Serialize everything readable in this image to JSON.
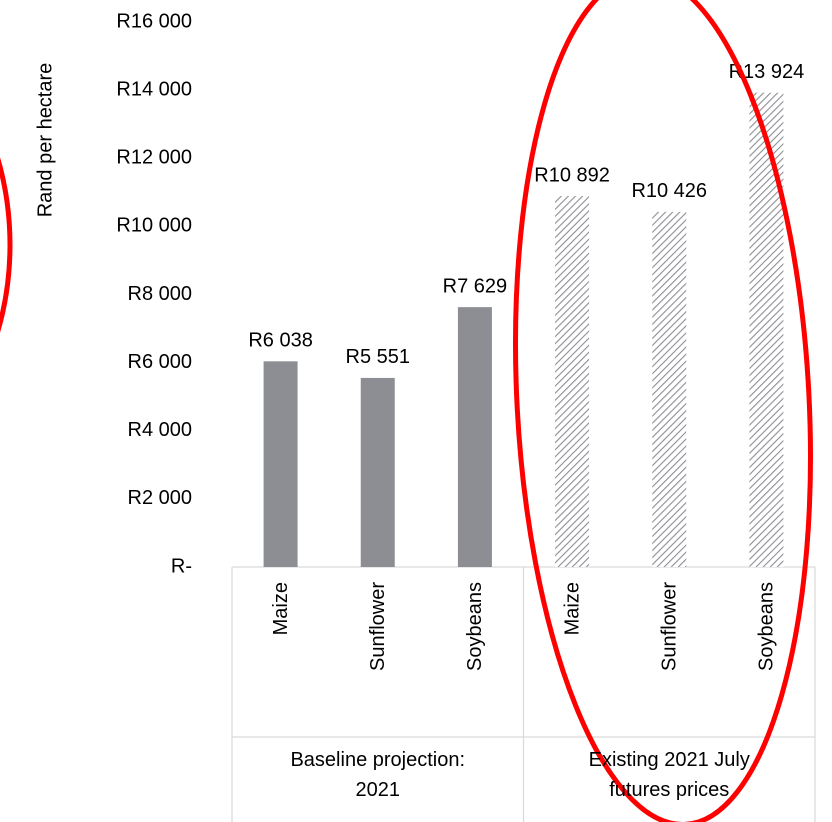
{
  "chart_data": {
    "type": "bar",
    "y_axis_label": "Rand per hectare",
    "ylim": [
      0,
      16000
    ],
    "yticks": [
      {
        "value": 0,
        "label": "R-"
      },
      {
        "value": 2000,
        "label": "R2 000"
      },
      {
        "value": 4000,
        "label": "R4 000"
      },
      {
        "value": 6000,
        "label": "R6 000"
      },
      {
        "value": 8000,
        "label": "R8 000"
      },
      {
        "value": 10000,
        "label": "R10 000"
      },
      {
        "value": 12000,
        "label": "R12 000"
      },
      {
        "value": 14000,
        "label": "R14 000"
      },
      {
        "value": 16000,
        "label": "R16 000"
      }
    ],
    "groups": [
      {
        "label": "Baseline projection: 2021",
        "fill": "solid",
        "color": "#8c8e94",
        "categories": [
          "Maize",
          "Sunflower",
          "Soybeans"
        ],
        "values": [
          6038,
          5551,
          7629
        ],
        "value_labels": [
          "R6 038",
          "R5 551",
          "R7 629"
        ]
      },
      {
        "label": "Existing 2021 July futures prices",
        "fill": "hatch",
        "color": "#8c8e94",
        "categories": [
          "Maize",
          "Sunflower",
          "Soybeans"
        ],
        "values": [
          10892,
          10426,
          13924
        ],
        "value_labels": [
          "R10 892",
          "R10 426",
          "R13 924"
        ]
      }
    ]
  }
}
